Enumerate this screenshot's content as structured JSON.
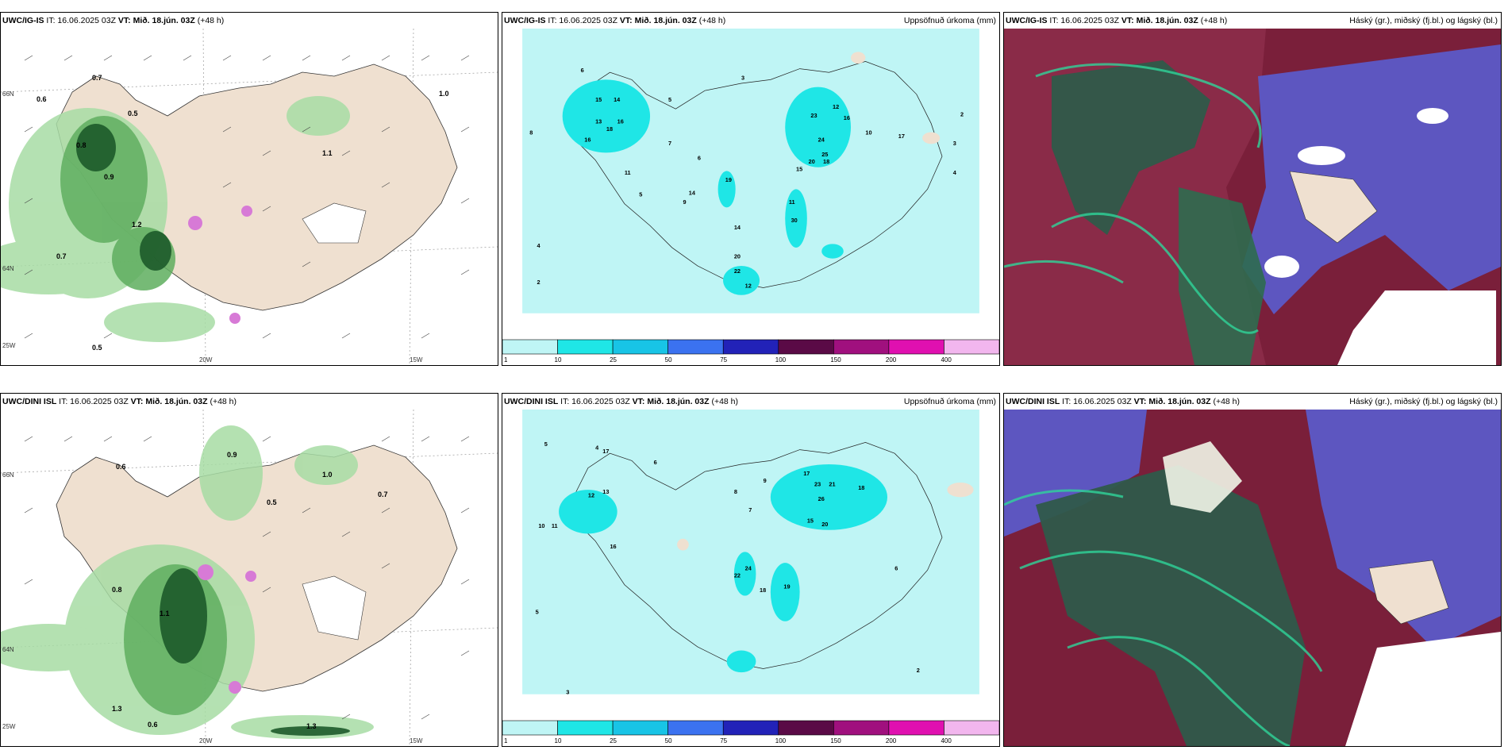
{
  "panels": {
    "p1": {
      "model": "UWC/IG-IS",
      "it": "IT: 16.06.2025 03Z",
      "vt": "VT: Mið. 18.jún. 03Z",
      "lead": "(+48 h)",
      "title": ""
    },
    "p2": {
      "model": "UWC/IG-IS",
      "it": "IT: 16.06.2025 03Z",
      "vt": "VT: Mið. 18.jún. 03Z",
      "lead": "(+48 h)",
      "title": "Uppsöfnuð úrkoma (mm)"
    },
    "p3": {
      "model": "UWC/IG-IS",
      "it": "IT: 16.06.2025 03Z",
      "vt": "VT: Mið. 18.jún. 03Z",
      "lead": "(+48 h)",
      "title": "Háský (gr.), miðský (fj.bl.) og lágský (bl.)"
    },
    "p4": {
      "model": "UWC/DINI ISL",
      "it": "IT: 16.06.2025 03Z",
      "vt": "VT: Mið. 18.jún. 03Z",
      "lead": "(+48 h)",
      "title": ""
    },
    "p5": {
      "model": "UWC/DINI ISL",
      "it": "IT: 16.06.2025 03Z",
      "vt": "VT: Mið. 18.jún. 03Z",
      "lead": "(+48 h)",
      "title": "Uppsöfnuð úrkoma (mm)"
    },
    "p6": {
      "model": "UWC/DINI ISL",
      "it": "IT: 16.06.2025 03Z",
      "vt": "VT: Mið. 18.jún. 03Z",
      "lead": "(+48 h)",
      "title": "Háský (gr.), miðský (fj.bl.) og lágský (bl.)"
    }
  },
  "axes": {
    "lat_top": "66N",
    "lat_mid": "64N",
    "lat_low": "25W",
    "lon_a": "20W",
    "lon_b": "15W"
  },
  "colorbar": {
    "labels": [
      "1",
      "10",
      "25",
      "50",
      "75",
      "100",
      "150",
      "200",
      "400"
    ],
    "colors": [
      "#bff5f5",
      "#1fe6e6",
      "#18c4e6",
      "#3b72f0",
      "#2222b8",
      "#5a0a46",
      "#a0107e",
      "#e010b0",
      "#f2b6ee"
    ]
  },
  "precip_values_top": [
    "8",
    "6",
    "5",
    "3",
    "2",
    "4",
    "16",
    "15",
    "14",
    "13",
    "16",
    "18",
    "11",
    "23",
    "24",
    "25",
    "20",
    "18",
    "15",
    "12",
    "16",
    "10",
    "7",
    "6",
    "5",
    "9",
    "19",
    "14",
    "30",
    "11",
    "22",
    "20",
    "12",
    "14",
    "17",
    "4",
    "3",
    "2"
  ],
  "precip_values_bottom": [
    "5",
    "4",
    "6",
    "12",
    "13",
    "17",
    "11",
    "10",
    "16",
    "17",
    "21",
    "23",
    "26",
    "18",
    "20",
    "15",
    "22",
    "24",
    "19",
    "18",
    "9",
    "8",
    "7",
    "6",
    "5",
    "3",
    "2"
  ],
  "wind_values_top": [
    "0.7",
    "0.6",
    "0.5",
    "1.0",
    "0.8",
    "1.1",
    "0.9",
    "1.2"
  ],
  "wind_values_bottom": [
    "0.9",
    "0.6",
    "1.0",
    "0.7",
    "0.5",
    "0.8",
    "1.1",
    "1.3"
  ]
}
